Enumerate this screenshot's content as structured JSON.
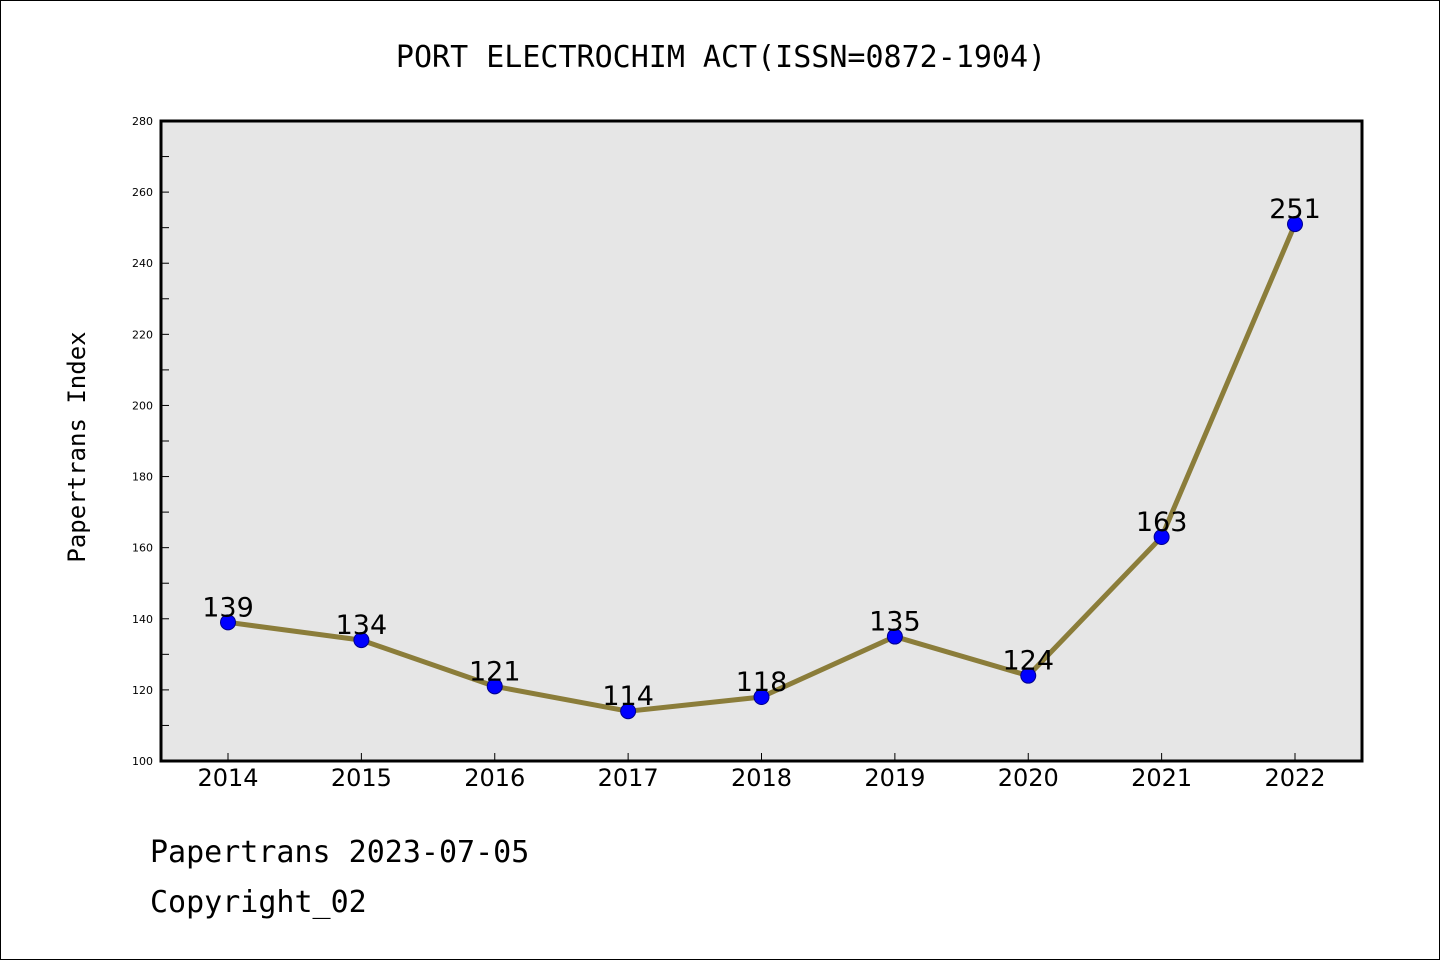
{
  "chart_data": {
    "type": "line",
    "title": "PORT ELECTROCHIM ACT(ISSN=0872-1904)",
    "xlabel": "",
    "ylabel": "Papertrans Index",
    "categories": [
      "2014",
      "2015",
      "2016",
      "2017",
      "2018",
      "2019",
      "2020",
      "2021",
      "2022"
    ],
    "series": [
      {
        "values": [
          139,
          134,
          121,
          114,
          118,
          135,
          124,
          163,
          251
        ]
      }
    ],
    "ylim": [
      100,
      280
    ],
    "y_ticks": [
      100,
      120,
      140,
      160,
      180,
      200,
      220,
      240,
      260,
      280
    ],
    "grid": false,
    "data_labels": true,
    "colors": {
      "line": "#8b7d3a",
      "marker": "#0000ff",
      "plot_background": "#e6e6e6"
    }
  },
  "footer": {
    "date_text": "Papertrans 2023-07-05",
    "copyright_text": "Copyright_02"
  }
}
